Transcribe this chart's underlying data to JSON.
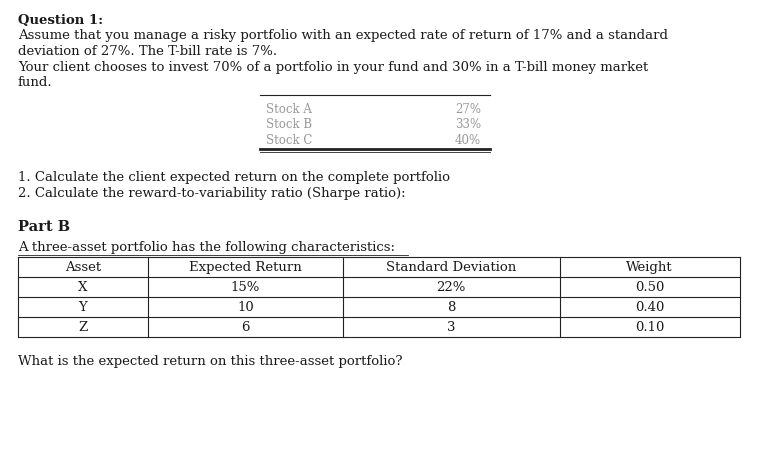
{
  "bg_color": "#ffffff",
  "title_bold": "Question 1:",
  "para1": "Assume that you manage a risky portfolio with an expected rate of return of 17% and a standard",
  "para2": "deviation of 27%. The T-bill rate is 7%.",
  "para3": "Your client chooses to invest 70% of a portfolio in your fund and 30% in a T-bill money market",
  "para4": "fund.",
  "stock_items": [
    "Stock A",
    "Stock B",
    "Stock C"
  ],
  "stock_values": [
    "27%",
    "33%",
    "40%"
  ],
  "item1": "1. Calculate the client expected return on the complete portfolio",
  "item2": "2. Calculate the reward-to-variability ratio (Sharpe ratio):",
  "partb_bold": "Part B",
  "partb_desc": "A three-asset portfolio has the following characteristics:",
  "table_headers": [
    "Asset",
    "Expected Return",
    "Standard Deviation",
    "Weight"
  ],
  "table_rows": [
    [
      "X",
      "15%",
      "22%",
      "0.50"
    ],
    [
      "Y",
      "10",
      "8",
      "0.40"
    ],
    [
      "Z",
      "6",
      "3",
      "0.10"
    ]
  ],
  "footer": "What is the expected return on this three-asset portfolio?",
  "font_family": "DejaVu Serif",
  "font_size": 9.5,
  "text_color": "#1a1a1a",
  "gray_color": "#999999",
  "line_color": "#222222"
}
